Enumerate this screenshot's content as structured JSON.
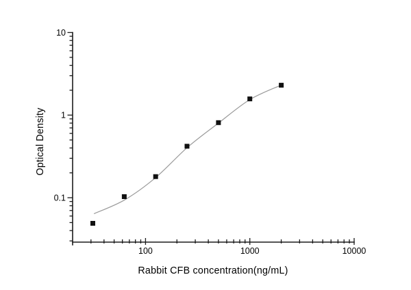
{
  "chart_data": {
    "type": "scatter",
    "title": "",
    "xlabel": "Rabbit CFB concentration(ng/mL)",
    "ylabel": "Optical Density",
    "x_scale": "log",
    "y_scale": "log",
    "x_range": [
      20,
      10000
    ],
    "y_range": [
      0.029,
      10
    ],
    "grid": false,
    "legend": null,
    "x_major_ticks": [
      {
        "value": 100,
        "label": "100"
      },
      {
        "value": 1000,
        "label": "1000"
      },
      {
        "value": 10000,
        "label": "10000"
      }
    ],
    "y_major_ticks": [
      {
        "value": 0.1,
        "label": "0.1"
      },
      {
        "value": 1,
        "label": "1"
      },
      {
        "value": 10,
        "label": "10"
      }
    ],
    "series": [
      {
        "name": "standard-curve-points",
        "x": [
          31.25,
          62.5,
          125,
          250,
          500,
          1000,
          2000
        ],
        "y": [
          0.049,
          0.103,
          0.18,
          0.42,
          0.81,
          1.57,
          2.3
        ]
      }
    ],
    "fit_curve": [
      [
        32,
        0.064
      ],
      [
        63,
        0.094
      ],
      [
        125,
        0.175
      ],
      [
        254,
        0.41
      ],
      [
        500,
        0.8
      ],
      [
        1000,
        1.54
      ],
      [
        1985,
        2.3
      ]
    ],
    "marker": {
      "shape": "square",
      "size": 7,
      "color": "#111111"
    },
    "colors": {
      "line": "#9a9a9a",
      "axis": "#1a1a1a",
      "text": "#000000",
      "background": "#ffffff"
    }
  }
}
